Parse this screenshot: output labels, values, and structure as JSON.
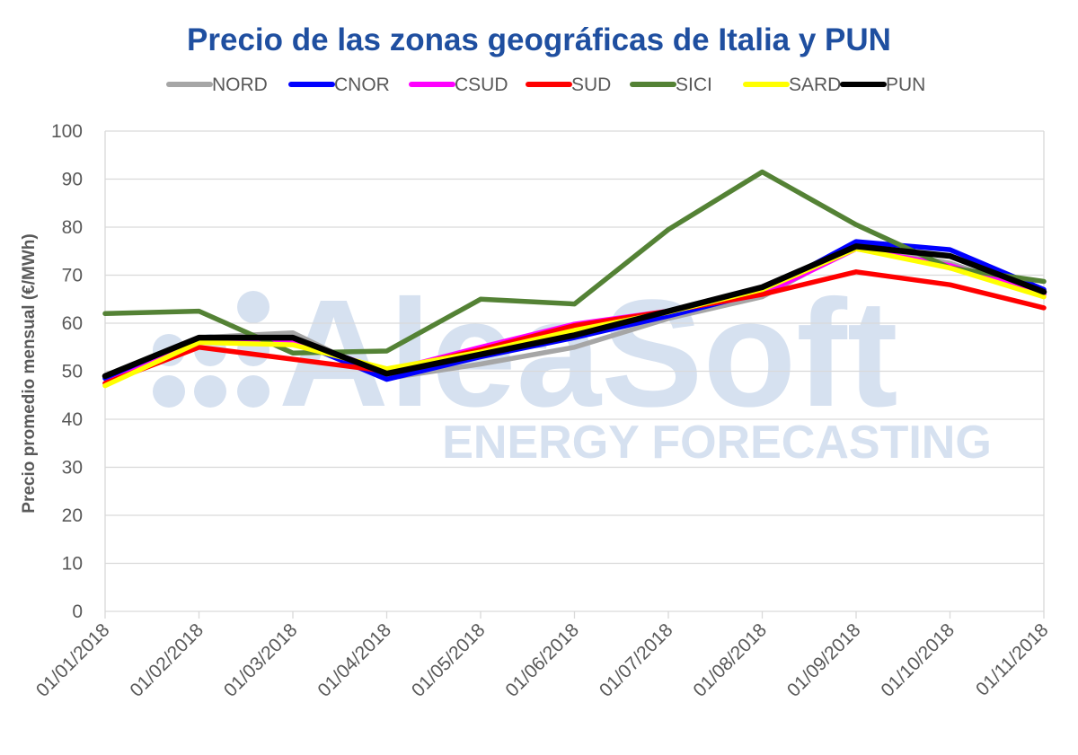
{
  "chart_data": {
    "type": "line",
    "title": "Precio de las zonas geográficas de Italia y PUN",
    "ylabel": "Precio promedio mensual (€/MWh)",
    "xlabel": "",
    "ylim": [
      0,
      100
    ],
    "yticks": [
      0,
      10,
      20,
      30,
      40,
      50,
      60,
      70,
      80,
      90,
      100
    ],
    "grid": true,
    "legend_position": "top",
    "categories": [
      "01/01/2018",
      "01/02/2018",
      "01/03/2018",
      "01/04/2018",
      "01/05/2018",
      "01/06/2018",
      "01/07/2018",
      "01/08/2018",
      "01/09/2018",
      "01/10/2018",
      "01/11/2018"
    ],
    "series": [
      {
        "name": "NORD",
        "color": "#A6A6A6",
        "values": [
          48.5,
          57.0,
          58.0,
          48.5,
          51.5,
          55.0,
          61.0,
          65.5,
          76.0,
          72.5,
          66.0
        ]
      },
      {
        "name": "CNOR",
        "color": "#0000FF",
        "values": [
          48.5,
          56.5,
          56.5,
          48.3,
          53.0,
          57.0,
          61.5,
          66.5,
          77.0,
          75.3,
          67.0
        ]
      },
      {
        "name": "CSUD",
        "color": "#FF00FF",
        "values": [
          47.5,
          56.0,
          56.5,
          50.0,
          55.0,
          59.8,
          62.5,
          66.0,
          75.5,
          72.0,
          66.0
        ]
      },
      {
        "name": "SUD",
        "color": "#FF0000",
        "values": [
          47.5,
          55.0,
          52.5,
          50.0,
          54.5,
          59.5,
          62.5,
          66.0,
          70.7,
          68.0,
          63.2
        ]
      },
      {
        "name": "SICI",
        "color": "#548235",
        "values": [
          62.0,
          62.5,
          53.8,
          54.2,
          65.0,
          64.0,
          79.5,
          91.5,
          80.5,
          71.5,
          68.7
        ]
      },
      {
        "name": "SARD",
        "color": "#FFFF00",
        "values": [
          47.0,
          56.0,
          55.5,
          50.5,
          54.0,
          58.5,
          62.3,
          67.0,
          75.5,
          71.5,
          65.5
        ]
      },
      {
        "name": "PUN",
        "color": "#000000",
        "values": [
          49.0,
          57.0,
          57.0,
          49.5,
          53.5,
          57.5,
          62.5,
          67.5,
          76.0,
          74.0,
          66.5
        ]
      }
    ]
  },
  "watermark": {
    "brand": "AleaSoft",
    "tagline": "ENERGY FORECASTING"
  },
  "colors": {
    "title": "#1F4FA0",
    "axis_text": "#595959",
    "grid": "#D9D9D9",
    "watermark": "#D6E1F0"
  }
}
